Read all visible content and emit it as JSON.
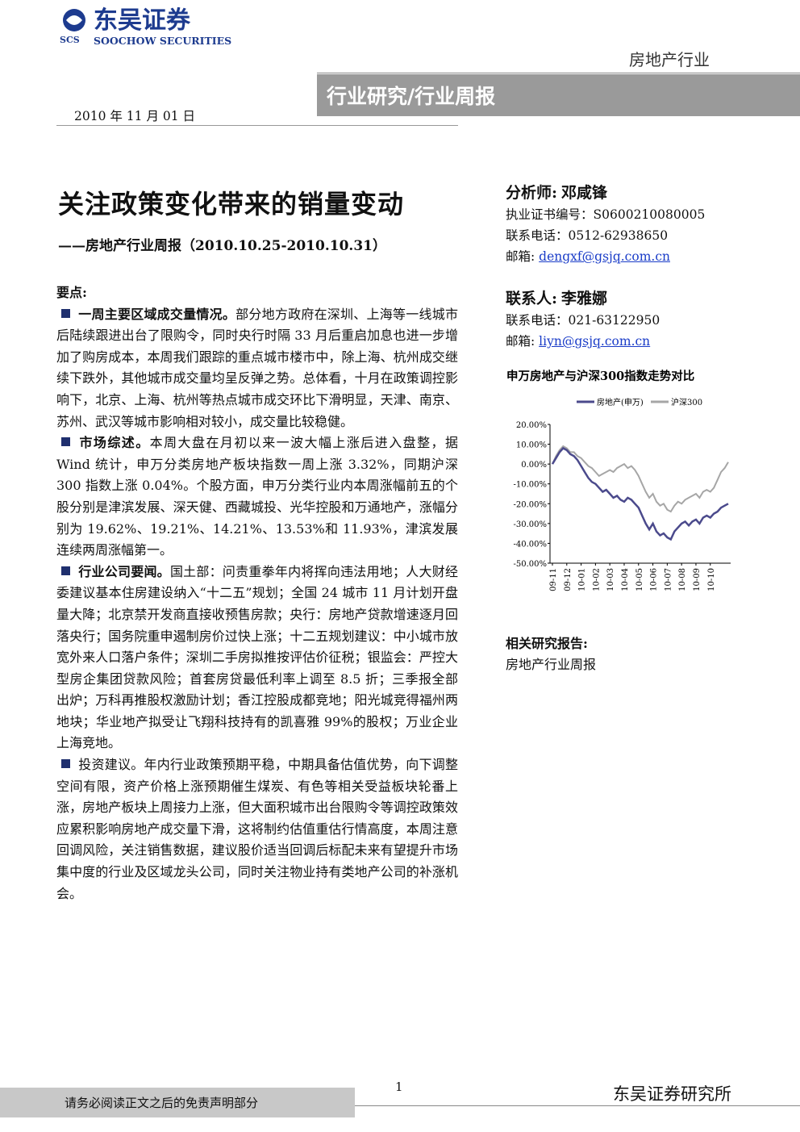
{
  "header": {
    "logo_cn": "东吴证券",
    "logo_en": "SOOCHOW SECURITIES",
    "logo_abbr": "SCS",
    "industry": "房地产行业",
    "banner": "行业研究/行业周报",
    "date": "2010 年 11 月 01 日"
  },
  "title": "关注政策变化带来的销量变动",
  "subtitle": "——房地产行业周报（2010.10.25-2010.10.31）",
  "key_points": {
    "heading": "要点:",
    "items": [
      {
        "lead": "一周主要区域成交量情况。",
        "text": "部分地方政府在深圳、上海等一线城市后陆续跟进出台了限购令，同时央行时隔 33 月后重启加息也进一步增加了购房成本，本周我们跟踪的重点城市楼市中，除上海、杭州成交继续下跌外，其他城市成交量均呈反弹之势。总体看，十月在政策调控影响下，北京、上海、杭州等热点城市成交环比下滑明显，天津、南京、苏州、武汉等城市影响相对较小，成交量比较稳健。"
      },
      {
        "lead": "市场综述。",
        "text": "本周大盘在月初以来一波大幅上涨后进入盘整，据 Wind 统计，申万分类房地产板块指数一周上涨 3.32%，同期沪深 300 指数上涨 0.04%。个股方面，申万分类行业内本周涨幅前五的个股分别是津滨发展、深天健、西藏城投、光华控股和万通地产，涨幅分别为 19.62%、19.21%、14.21%、13.53%和 11.93%，津滨发展连续两周涨幅第一。"
      },
      {
        "lead": "行业公司要闻。",
        "text": "国土部：问责重拳年内将挥向违法用地；人大财经委建议基本住房建设纳入“十二五”规划；全国 24 城市 11 月计划开盘量大降；北京禁开发商直接收预售房款；央行：房地产贷款增速逐月回落央行；国务院重申遏制房价过快上涨；十二五规划建议：中小城市放宽外来人口落户条件；深圳二手房拟推按评估价征税；银监会：严控大型房企集团贷款风险；首套房贷最低利率上调至 8.5 折；三季报全部出炉；万科再推股权激励计划；香江控股成都竞地；阳光城竞得福州两地块；华业地产拟受让飞翔科技持有的凯喜雅 99%的股权；万业企业上海竞地。"
      },
      {
        "lead": "投资建议。",
        "text": "年内行业政策预期平稳，中期具备估值优势，向下调整空间有限，资产价格上涨预期催生煤炭、有色等相关受益板块轮番上涨，房地产板块上周接力上涨，但大面积城市出台限购令等调控政策效应累积影响房地产成交量下滑，这将制约估值重估行情高度，本周注意回调风险，关注销售数据，建议股价适当回调后标配未来有望提升市场集中度的行业及区域龙头公司，同时关注物业持有类地产公司的补涨机会。"
      }
    ]
  },
  "analyst": {
    "label": "分析师:",
    "name": "邓咸锋",
    "cert": "执业证书编号：S0600210080005",
    "phone": "联系电话：0512-62938650",
    "email_label": "邮箱:",
    "email": "dengxf@gsjq.com.cn"
  },
  "contact": {
    "label": "联系人:",
    "name": "李雅娜",
    "phone": "联系电话：021-63122950",
    "email_label": "邮箱:",
    "email": "liyn@gsjq.com.cn"
  },
  "chart_data": {
    "type": "line",
    "title": "申万房地产与沪深300指数走势对比",
    "categories": [
      "09-11",
      null,
      null,
      null,
      "09-12",
      null,
      null,
      null,
      "10-01",
      null,
      null,
      null,
      "10-02",
      null,
      null,
      null,
      "10-03",
      null,
      null,
      null,
      "10-04",
      null,
      null,
      null,
      "10-05",
      null,
      null,
      null,
      "10-06",
      null,
      null,
      null,
      "10-07",
      null,
      null,
      null,
      "10-08",
      null,
      null,
      null,
      "10-09",
      null,
      null,
      null,
      "10-10",
      null,
      null,
      null,
      null,
      null
    ],
    "series": [
      {
        "name": "房地产(申万)",
        "color": "#4b4a8c",
        "values": [
          0,
          3,
          6,
          8,
          7,
          5,
          4,
          2,
          -1,
          -4,
          -7,
          -9,
          -10,
          -12,
          -14,
          -13,
          -15,
          -17,
          -16,
          -18,
          -19,
          -17,
          -18,
          -20,
          -22,
          -26,
          -30,
          -33,
          -30,
          -34,
          -36,
          -35,
          -37,
          -38,
          -34,
          -32,
          -30,
          -29,
          -31,
          -29,
          -28,
          -30,
          -27,
          -26,
          -27,
          -25,
          -24,
          -22,
          -21,
          -20
        ]
      },
      {
        "name": "沪深300",
        "color": "#a6a6a6",
        "values": [
          0,
          4,
          7,
          9,
          8,
          6,
          6,
          4,
          3,
          1,
          -1,
          -2,
          -4,
          -6,
          -5,
          -4,
          -3,
          -4,
          -2,
          -1,
          0,
          -2,
          -1,
          -3,
          -6,
          -10,
          -14,
          -17,
          -15,
          -19,
          -21,
          -20,
          -23,
          -24,
          -21,
          -19,
          -20,
          -18,
          -17,
          -16,
          -15,
          -17,
          -14,
          -13,
          -14,
          -12,
          -8,
          -4,
          -2,
          1
        ]
      }
    ],
    "ylim": [
      -50,
      20
    ],
    "yticks": [
      {
        "value": 20,
        "label": "20.00%"
      },
      {
        "value": 10,
        "label": "10.00%"
      },
      {
        "value": 0,
        "label": "0.00%"
      },
      {
        "value": -10,
        "label": "-10.00%"
      },
      {
        "value": -20,
        "label": "-20.00%"
      },
      {
        "value": -30,
        "label": "-30.00%"
      },
      {
        "value": -40,
        "label": "-40.00%"
      },
      {
        "value": -50,
        "label": "-50.00%"
      }
    ]
  },
  "related": {
    "label": "相关研究报告:",
    "items": [
      "房地产行业周报"
    ]
  },
  "footer": {
    "disclaimer": "请务必阅读正文之后的免责声明部分",
    "page": "1",
    "org": "东吴证券研究所"
  }
}
